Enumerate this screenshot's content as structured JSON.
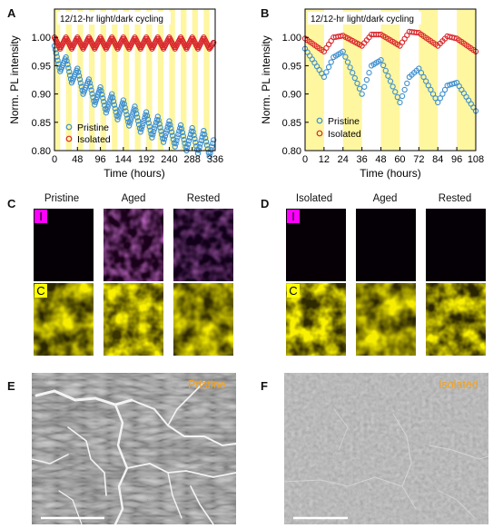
{
  "panels": {
    "A": "A",
    "B": "B",
    "C": "C",
    "D": "D",
    "E": "E",
    "F": "F"
  },
  "chart_data": [
    {
      "type": "scatter",
      "panel": "A",
      "title": "12/12-hr light/dark cycling",
      "xlabel": "Time (hours)",
      "ylabel": "Norm. PL intensity",
      "xlim": [
        0,
        336
      ],
      "ylim": [
        0.8,
        1.05
      ],
      "xticks": [
        0,
        48,
        96,
        144,
        192,
        240,
        288,
        336
      ],
      "yticks": [
        0.8,
        0.85,
        0.9,
        0.95,
        1.0
      ],
      "ytick_labels": [
        "0.80",
        "0.85",
        "0.90",
        "0.95",
        "1.00"
      ],
      "light_period_hours": 12,
      "legend": [
        "Pristine",
        "Isolated"
      ],
      "legend_position": "bottom-left",
      "series": [
        {
          "name": "Pristine",
          "color": "#3d8fcf",
          "cycle_start": [
            0.985,
            0.965,
            0.945,
            0.926,
            0.912,
            0.9,
            0.889,
            0.878,
            0.868,
            0.86,
            0.852,
            0.845,
            0.84,
            0.835
          ],
          "cycle_drop": 0.045
        },
        {
          "name": "Isolated",
          "color": "#d9262b",
          "cycle_start": [
            1.0,
            1.0,
            1.0,
            1.0,
            1.0,
            1.0,
            1.0,
            1.0,
            1.0,
            1.0,
            1.0,
            1.0,
            1.0,
            1.0
          ],
          "cycle_drop": 0.02
        }
      ]
    },
    {
      "type": "scatter",
      "panel": "B",
      "title": "12/12-hr light/dark cycling",
      "xlabel": "Time (hours)",
      "ylabel": "Norm. PL intensity",
      "xlim": [
        0,
        108
      ],
      "ylim": [
        0.8,
        1.05
      ],
      "xticks": [
        0,
        12,
        24,
        36,
        48,
        60,
        72,
        84,
        96,
        108
      ],
      "yticks": [
        0.8,
        0.85,
        0.9,
        0.95,
        1.0
      ],
      "ytick_labels": [
        "0.80",
        "0.85",
        "0.90",
        "0.95",
        "1.00"
      ],
      "light_period_hours": 12,
      "legend": [
        "Pristine",
        "Isolated"
      ],
      "legend_position": "bottom-left",
      "series": [
        {
          "name": "Pristine",
          "color": "#3d8fcf",
          "x": [
            0,
            12,
            18,
            24,
            36,
            42,
            48,
            60,
            66,
            72,
            84,
            90,
            96,
            108
          ],
          "y": [
            0.98,
            0.93,
            0.965,
            0.975,
            0.9,
            0.95,
            0.96,
            0.885,
            0.93,
            0.945,
            0.885,
            0.915,
            0.92,
            0.87
          ]
        },
        {
          "name": "Isolated",
          "color": "#d9262b",
          "x": [
            0,
            12,
            18,
            24,
            36,
            42,
            48,
            60,
            66,
            72,
            84,
            90,
            96,
            108
          ],
          "y": [
            0.998,
            0.975,
            1.0,
            1.003,
            0.985,
            1.005,
            1.005,
            0.985,
            1.01,
            1.008,
            0.985,
            1.002,
            0.998,
            0.975
          ]
        }
      ]
    }
  ],
  "maps": {
    "C": {
      "labels": [
        "Pristine",
        "Aged",
        "Rested"
      ],
      "row_badges": [
        "I",
        "C"
      ]
    },
    "D": {
      "labels": [
        "Isolated",
        "Aged",
        "Rested"
      ],
      "row_badges": [
        "I",
        "C"
      ]
    }
  },
  "sem": {
    "E": {
      "label": "Pristine"
    },
    "F": {
      "label": "Isolated"
    }
  },
  "colors": {
    "light_band": "#fff6a0",
    "iodine_map": "#b23cbe",
    "carbon_map": "#e6d200",
    "sem_label": "#f2a11d",
    "badge_bg": "#ff00ff"
  }
}
